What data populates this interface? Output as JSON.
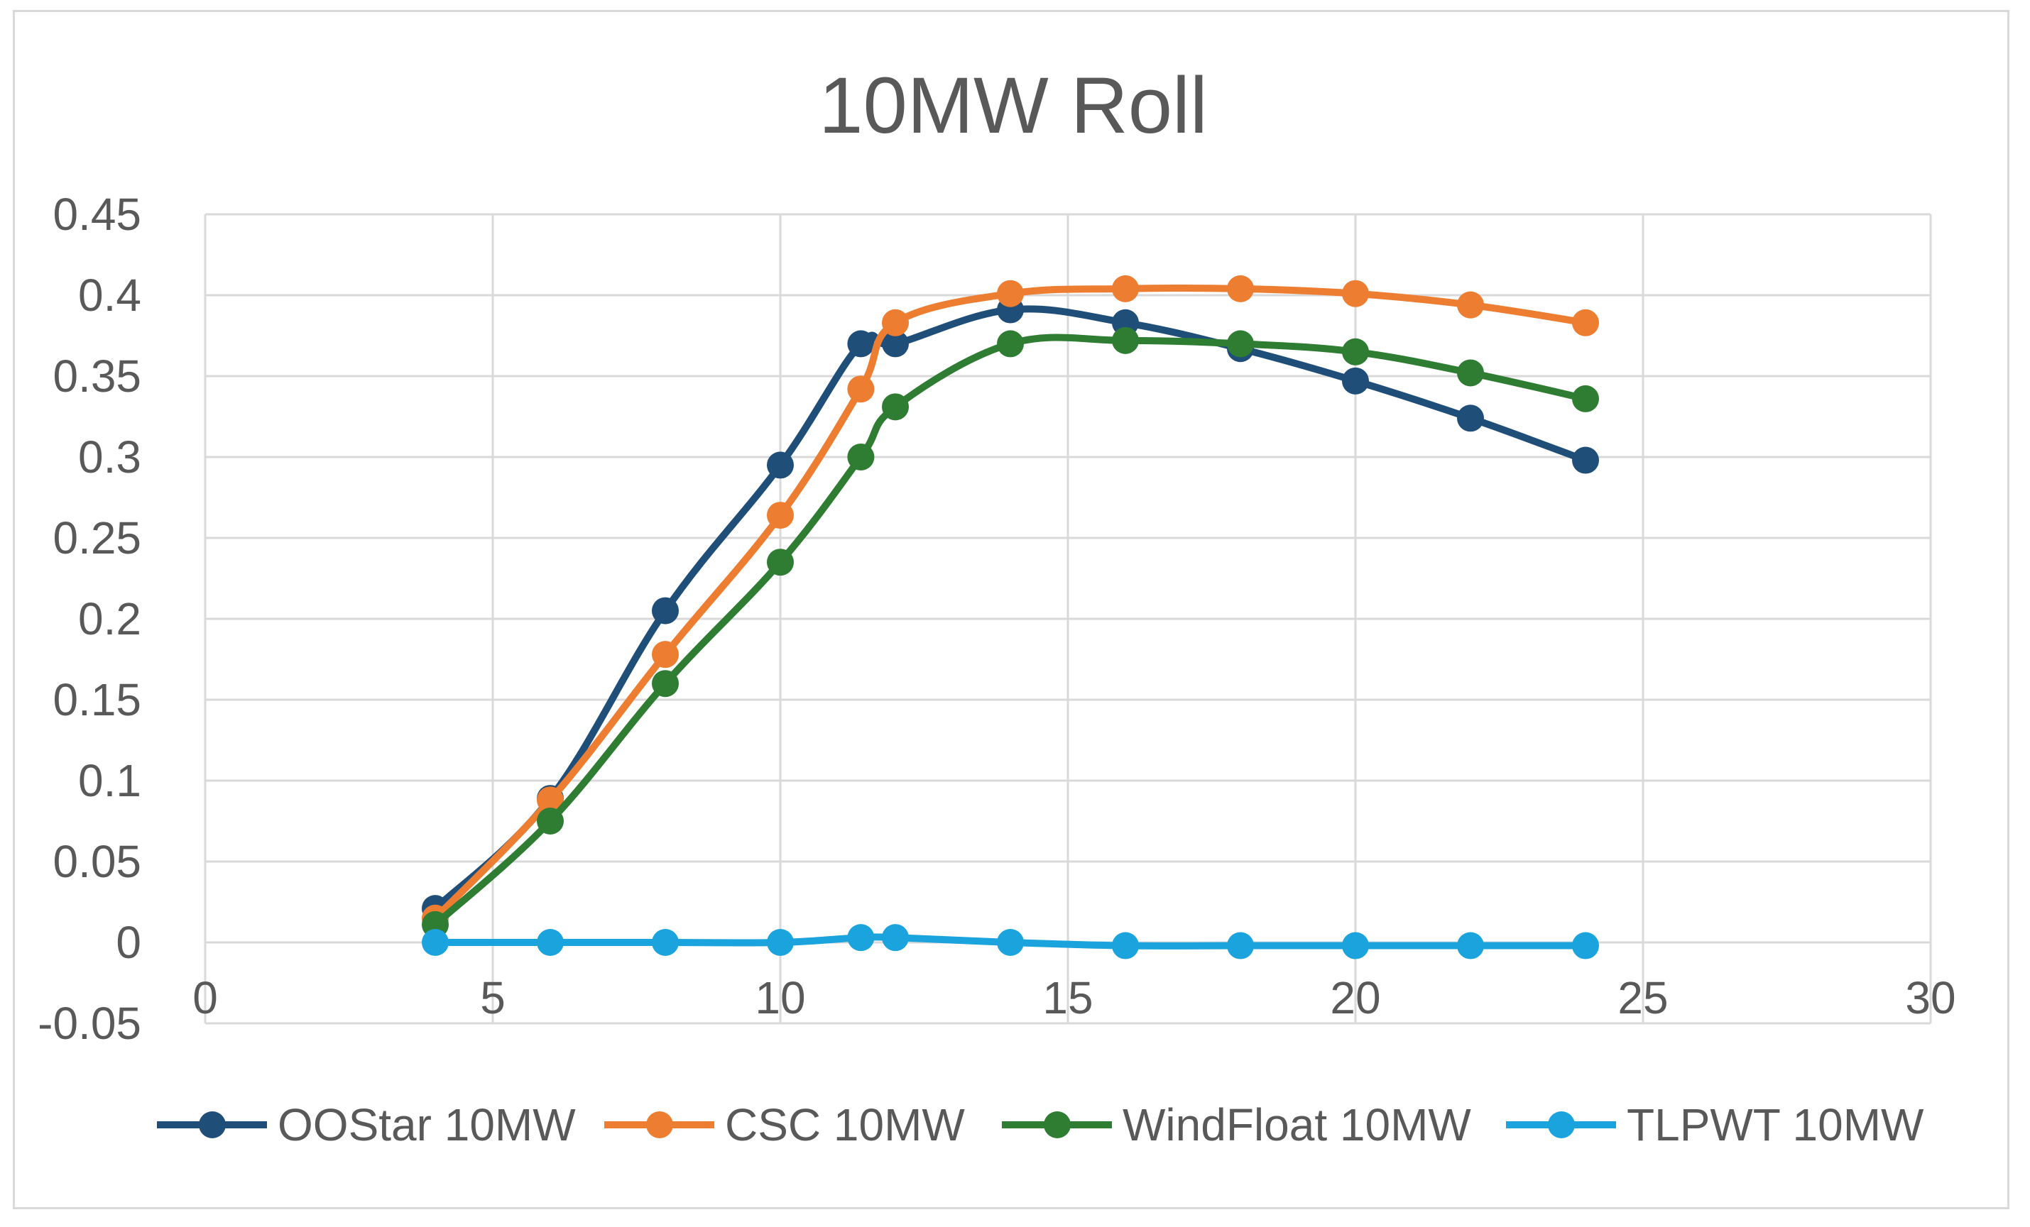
{
  "chart_data": {
    "type": "line",
    "title": "10MW Roll",
    "xlabel": "",
    "ylabel": "",
    "xlim": [
      0,
      30
    ],
    "ylim": [
      -0.05,
      0.45
    ],
    "x_ticks": [
      0,
      5,
      10,
      15,
      20,
      25,
      30
    ],
    "x_tick_labels": [
      "0",
      "5",
      "10",
      "15",
      "20",
      "25",
      "30"
    ],
    "y_ticks": [
      -0.05,
      0,
      0.05,
      0.1,
      0.15,
      0.2,
      0.25,
      0.3,
      0.35,
      0.4,
      0.45
    ],
    "y_tick_labels": [
      "-0.05",
      "0",
      "0.05",
      "0.1",
      "0.15",
      "0.2",
      "0.25",
      "0.3",
      "0.35",
      "0.4",
      "0.45"
    ],
    "grid": true,
    "legend_position": "bottom",
    "series": [
      {
        "name": "OOStar 10MW",
        "color": "#1f4e79",
        "x": [
          4,
          6,
          8,
          10,
          11.4,
          12,
          14,
          16,
          18,
          20,
          22,
          24
        ],
        "y": [
          0.021,
          0.089,
          0.205,
          0.295,
          0.37,
          0.37,
          0.391,
          0.383,
          0.367,
          0.347,
          0.324,
          0.298
        ]
      },
      {
        "name": "CSC 10MW",
        "color": "#ed7d31",
        "x": [
          4,
          6,
          8,
          10,
          11.4,
          12,
          14,
          16,
          18,
          20,
          22,
          24
        ],
        "y": [
          0.015,
          0.088,
          0.178,
          0.264,
          0.342,
          0.383,
          0.401,
          0.404,
          0.404,
          0.401,
          0.394,
          0.383
        ]
      },
      {
        "name": "WindFloat 10MW",
        "color": "#2e7d32",
        "x": [
          4,
          6,
          8,
          10,
          11.4,
          12,
          14,
          16,
          18,
          20,
          22,
          24
        ],
        "y": [
          0.011,
          0.075,
          0.16,
          0.235,
          0.3,
          0.331,
          0.37,
          0.372,
          0.37,
          0.365,
          0.352,
          0.336
        ]
      },
      {
        "name": "TLPWT 10MW",
        "color": "#1aa3dc",
        "x": [
          4,
          6,
          8,
          10,
          11.4,
          12,
          14,
          16,
          18,
          20,
          22,
          24
        ],
        "y": [
          0.0,
          0.0,
          0.0,
          0.0,
          0.003,
          0.003,
          0.0,
          -0.002,
          -0.002,
          -0.002,
          -0.002,
          -0.002
        ]
      }
    ]
  }
}
